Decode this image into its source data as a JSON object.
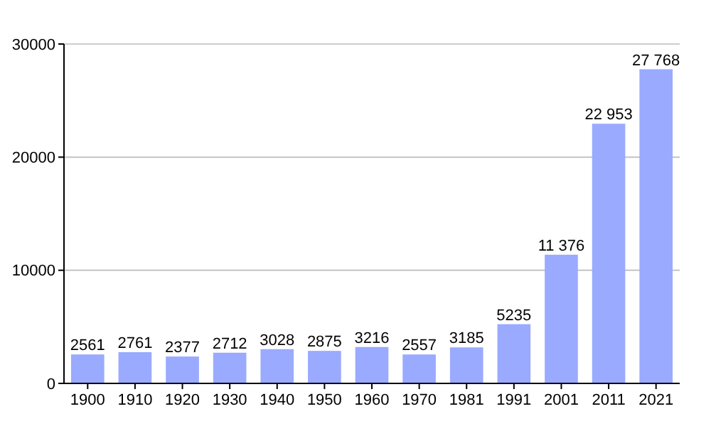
{
  "chart_data": {
    "type": "bar",
    "categories": [
      "1900",
      "1910",
      "1920",
      "1930",
      "1940",
      "1950",
      "1960",
      "1970",
      "1981",
      "1991",
      "2001",
      "2011",
      "2021"
    ],
    "values": [
      2561,
      2761,
      2377,
      2712,
      3028,
      2875,
      3216,
      2557,
      3185,
      5235,
      11376,
      22953,
      27768
    ],
    "value_labels": [
      "2561",
      "2761",
      "2377",
      "2712",
      "3028",
      "2875",
      "3216",
      "2557",
      "3185",
      "5235",
      "11 376",
      "22 953",
      "27 768"
    ],
    "color": "#99aaff",
    "ylim": [
      0,
      30000
    ],
    "yticks": [
      0,
      10000,
      20000,
      30000
    ],
    "grid": "y"
  }
}
